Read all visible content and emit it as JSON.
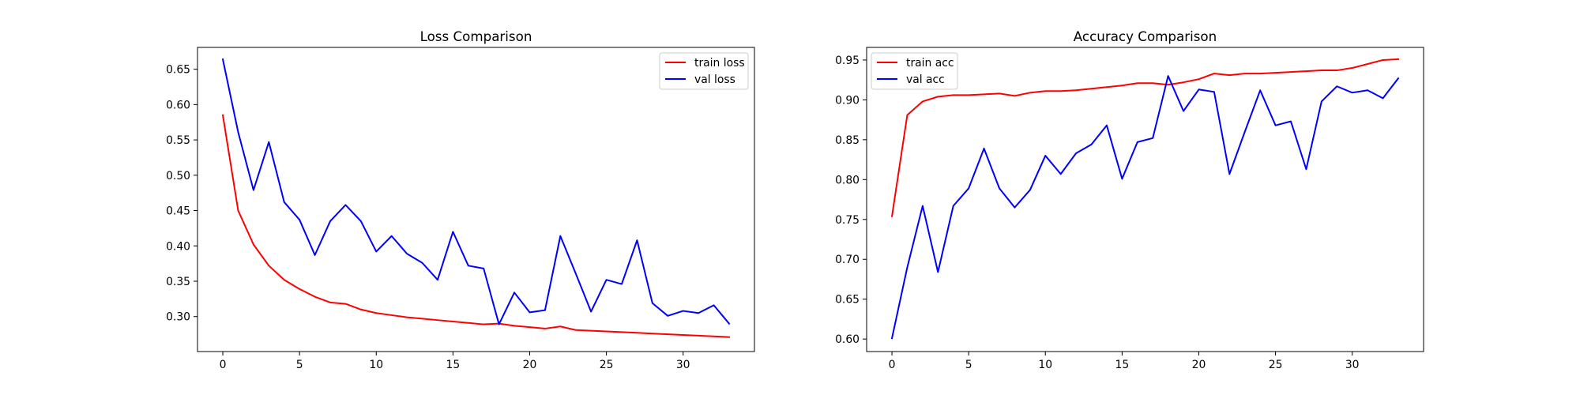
{
  "chart_data": [
    {
      "type": "line",
      "title": "Loss Comparison",
      "xlabel": "",
      "ylabel": "",
      "xlim": [
        -1.65,
        34.65
      ],
      "ylim": [
        0.2505,
        0.6809
      ],
      "xticks": [
        0,
        5,
        10,
        15,
        20,
        25,
        30
      ],
      "yticks": [
        0.3,
        0.35,
        0.4,
        0.45,
        0.5,
        0.55,
        0.6,
        0.65
      ],
      "grid": false,
      "legend": "upper right",
      "x": [
        0,
        1,
        2,
        3,
        4,
        5,
        6,
        7,
        8,
        9,
        10,
        11,
        12,
        13,
        14,
        15,
        16,
        17,
        18,
        19,
        20,
        21,
        22,
        23,
        24,
        25,
        26,
        27,
        28,
        29,
        30,
        31,
        32,
        33
      ],
      "series": [
        {
          "name": "train loss",
          "color": "#ff0000",
          "values": [
            0.585,
            0.45,
            0.402,
            0.372,
            0.352,
            0.339,
            0.328,
            0.32,
            0.318,
            0.31,
            0.305,
            0.302,
            0.299,
            0.297,
            0.295,
            0.293,
            0.291,
            0.289,
            0.29,
            0.287,
            0.285,
            0.283,
            0.286,
            0.281,
            0.28,
            0.279,
            0.278,
            0.277,
            0.276,
            0.275,
            0.274,
            0.273,
            0.272,
            0.271
          ]
        },
        {
          "name": "val loss",
          "color": "#0000ff",
          "values": [
            0.664,
            0.561,
            0.479,
            0.547,
            0.462,
            0.437,
            0.387,
            0.435,
            0.458,
            0.435,
            0.392,
            0.414,
            0.389,
            0.376,
            0.352,
            0.42,
            0.372,
            0.368,
            0.289,
            0.334,
            0.306,
            0.309,
            0.414,
            0.361,
            0.307,
            0.352,
            0.346,
            0.408,
            0.319,
            0.301,
            0.308,
            0.305,
            0.316,
            0.29
          ]
        }
      ]
    },
    {
      "type": "line",
      "title": "Accuracy Comparison",
      "xlabel": "",
      "ylabel": "",
      "xlim": [
        -1.65,
        34.65
      ],
      "ylim": [
        0.5843,
        0.9658
      ],
      "xticks": [
        0,
        5,
        10,
        15,
        20,
        25,
        30
      ],
      "yticks": [
        0.6,
        0.65,
        0.7,
        0.75,
        0.8,
        0.85,
        0.9,
        0.95
      ],
      "grid": false,
      "legend": "upper left",
      "x": [
        0,
        1,
        2,
        3,
        4,
        5,
        6,
        7,
        8,
        9,
        10,
        11,
        12,
        13,
        14,
        15,
        16,
        17,
        18,
        19,
        20,
        21,
        22,
        23,
        24,
        25,
        26,
        27,
        28,
        29,
        30,
        31,
        32,
        33
      ],
      "series": [
        {
          "name": "train acc",
          "color": "#ff0000",
          "values": [
            0.754,
            0.881,
            0.898,
            0.904,
            0.906,
            0.906,
            0.907,
            0.908,
            0.905,
            0.909,
            0.911,
            0.911,
            0.912,
            0.914,
            0.916,
            0.918,
            0.921,
            0.921,
            0.919,
            0.922,
            0.926,
            0.933,
            0.931,
            0.933,
            0.933,
            0.934,
            0.935,
            0.936,
            0.937,
            0.937,
            0.94,
            0.945,
            0.95,
            0.951
          ]
        },
        {
          "name": "val acc",
          "color": "#0000ff",
          "values": [
            0.601,
            0.69,
            0.767,
            0.684,
            0.767,
            0.789,
            0.839,
            0.789,
            0.765,
            0.787,
            0.83,
            0.807,
            0.833,
            0.844,
            0.868,
            0.801,
            0.847,
            0.852,
            0.93,
            0.886,
            0.913,
            0.91,
            0.807,
            0.86,
            0.912,
            0.868,
            0.873,
            0.813,
            0.898,
            0.917,
            0.909,
            0.912,
            0.902,
            0.927
          ]
        }
      ]
    }
  ]
}
